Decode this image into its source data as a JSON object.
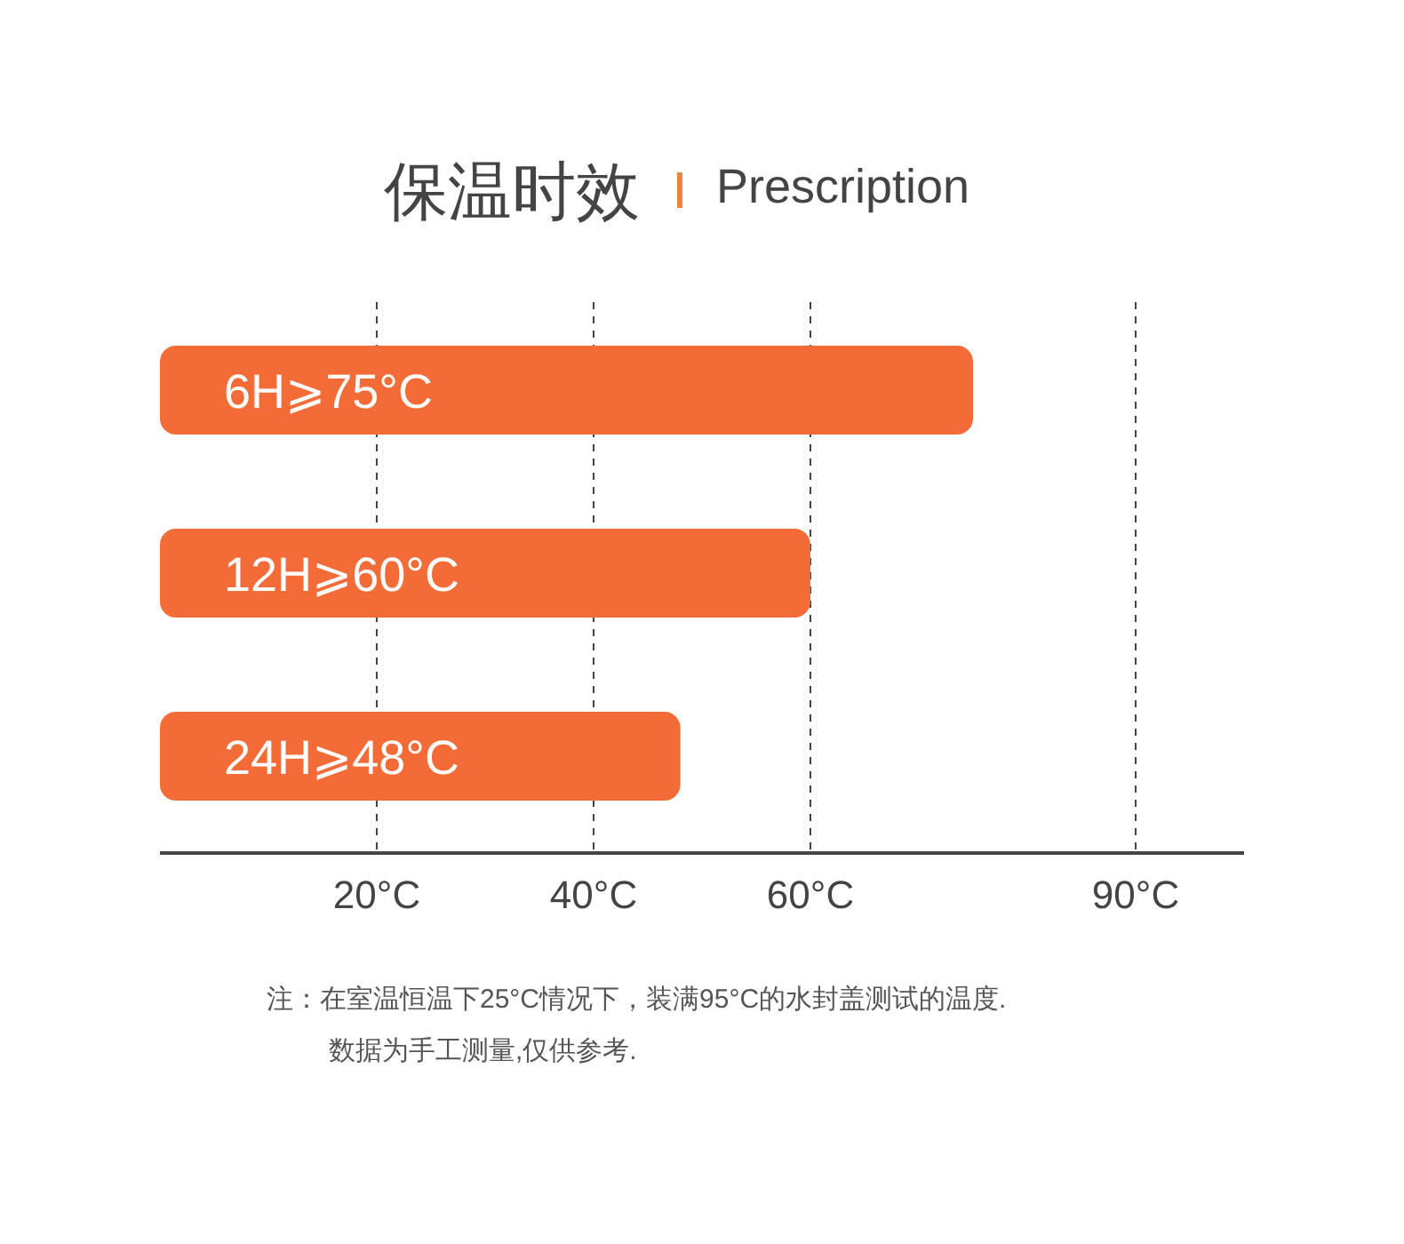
{
  "chart_data": {
    "type": "bar",
    "orientation": "horizontal",
    "title": "保温时效",
    "subtitle": "Prescription",
    "categories": [
      null,
      null,
      null
    ],
    "values": [
      75,
      60,
      48
    ],
    "value_labels": [
      "6H⩾75°C",
      "12H⩾60°C",
      "24H⩾48°C"
    ],
    "color": "#f36c37",
    "xlim": [
      0,
      100
    ],
    "xticks": [
      {
        "value": 20,
        "label": "20°C"
      },
      {
        "value": 40,
        "label": "40°C"
      },
      {
        "value": 60,
        "label": "60°C"
      },
      {
        "value": 90,
        "label": "90°C"
      }
    ],
    "grid": "x",
    "tick_labels": "x",
    "annotations": [
      "注：在室温恒温下25°C情况下，装满95°C的水封盖测试的温度.",
      "数据为手工测量,仅供参考."
    ]
  }
}
